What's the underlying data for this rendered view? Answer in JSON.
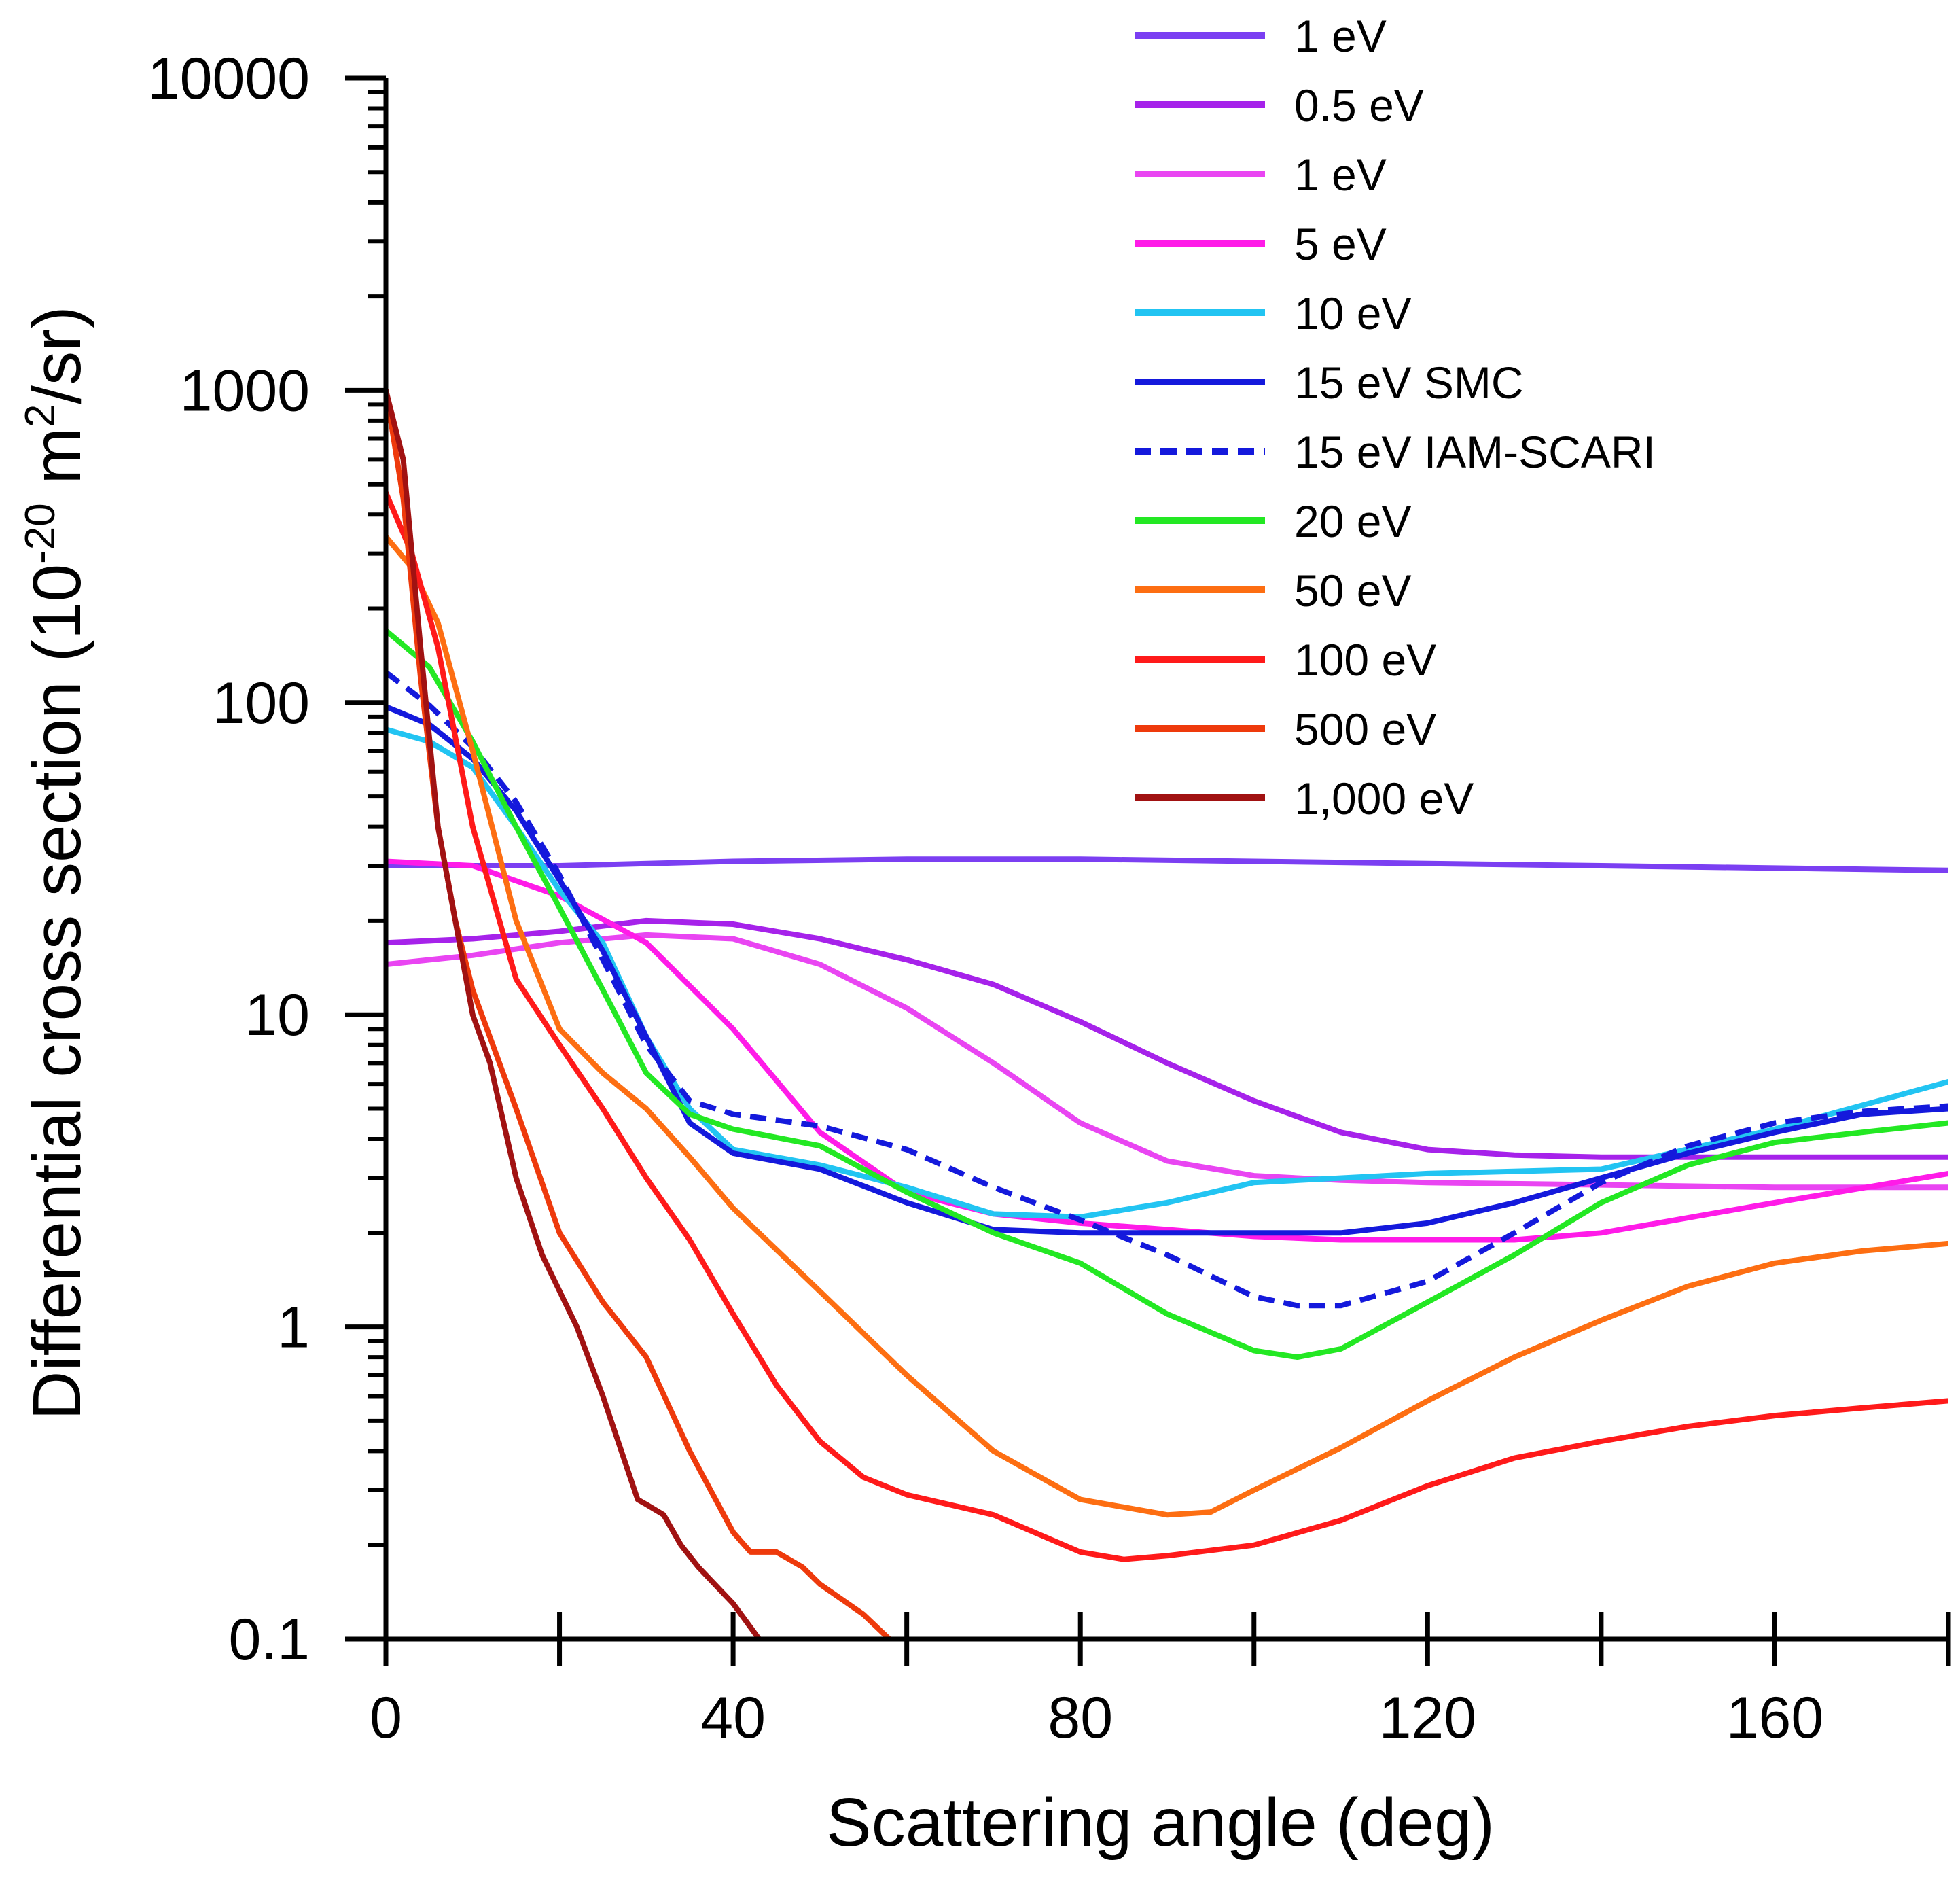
{
  "chart_data": {
    "type": "line",
    "title": "",
    "xlabel": "Scattering angle (deg)",
    "ylabel": {
      "prefix": "Differential cross section (10",
      "exp1": "-20",
      "mid": " m",
      "exp2": "2",
      "suffix": "/sr)"
    },
    "xlim": [
      0,
      180
    ],
    "ylim": [
      0.1,
      10000
    ],
    "yscale": "log",
    "x_ticks": [
      0,
      40,
      80,
      120,
      160
    ],
    "x_tick_labels": [
      "0",
      "40",
      "80",
      "120",
      "160"
    ],
    "y_ticks": [
      0.1,
      1,
      10,
      100,
      1000,
      10000
    ],
    "y_tick_labels": [
      "0.1",
      "1",
      "10",
      "100",
      "1000",
      "10000"
    ],
    "legend_position": "top-right",
    "series": [
      {
        "name": "1 eV",
        "color": "#7b3ff2",
        "dash": false,
        "x": [
          0,
          20,
          40,
          60,
          80,
          100,
          120,
          140,
          160,
          180
        ],
        "y": [
          30,
          30,
          31,
          31.5,
          31.5,
          31,
          30.5,
          30,
          29.5,
          29
        ]
      },
      {
        "name": "0.5 eV",
        "color": "#a622ea",
        "dash": false,
        "x": [
          0,
          10,
          20,
          30,
          40,
          50,
          60,
          70,
          80,
          90,
          100,
          110,
          120,
          130,
          140,
          150,
          160,
          180
        ],
        "y": [
          17,
          17.5,
          18.5,
          20,
          19.5,
          17.5,
          15,
          12.5,
          9.5,
          7,
          5.3,
          4.2,
          3.7,
          3.55,
          3.5,
          3.5,
          3.5,
          3.5
        ]
      },
      {
        "name": "1 eV",
        "color": "#e945f2",
        "dash": false,
        "x": [
          0,
          10,
          20,
          30,
          40,
          50,
          60,
          70,
          80,
          90,
          100,
          110,
          120,
          140,
          160,
          180
        ],
        "y": [
          14.5,
          15.5,
          17,
          18,
          17.5,
          14.5,
          10.5,
          7,
          4.5,
          3.4,
          3.05,
          2.95,
          2.9,
          2.85,
          2.8,
          2.8
        ]
      },
      {
        "name": "5 eV",
        "color": "#ff1be8",
        "dash": false,
        "x": [
          0,
          10,
          20,
          30,
          40,
          50,
          60,
          70,
          80,
          90,
          100,
          110,
          120,
          130,
          140,
          160,
          180
        ],
        "y": [
          31,
          30,
          24,
          17,
          9,
          4.2,
          2.7,
          2.3,
          2.15,
          2.05,
          1.95,
          1.9,
          1.9,
          1.9,
          2.0,
          2.5,
          3.1
        ]
      },
      {
        "name": "10 eV",
        "color": "#22c4f2",
        "dash": false,
        "x": [
          0,
          5,
          10,
          15,
          20,
          25,
          30,
          35,
          40,
          50,
          60,
          70,
          80,
          90,
          100,
          120,
          140,
          160,
          180
        ],
        "y": [
          82,
          75,
          62,
          40,
          25,
          17,
          8.5,
          5,
          3.7,
          3.3,
          2.8,
          2.3,
          2.25,
          2.5,
          2.9,
          3.1,
          3.2,
          4.3,
          6.1
        ]
      },
      {
        "name": "15 eV SMC",
        "color": "#1419dc",
        "dash": false,
        "x": [
          0,
          5,
          10,
          15,
          20,
          25,
          30,
          35,
          40,
          50,
          60,
          70,
          80,
          90,
          100,
          110,
          120,
          130,
          140,
          150,
          160,
          170,
          180
        ],
        "y": [
          97,
          85,
          66,
          45,
          27,
          16,
          8.5,
          4.5,
          3.6,
          3.2,
          2.5,
          2.05,
          2.0,
          2.0,
          2.0,
          2.0,
          2.15,
          2.5,
          3.0,
          3.6,
          4.2,
          4.8,
          5.0
        ]
      },
      {
        "name": "15 eV IAM-SCARI",
        "color": "#1419dc",
        "dash": true,
        "x": [
          0,
          5,
          10,
          15,
          20,
          25,
          30,
          35,
          40,
          50,
          60,
          70,
          80,
          90,
          100,
          105,
          110,
          120,
          130,
          140,
          150,
          160,
          170,
          180
        ],
        "y": [
          125,
          98,
          72,
          48,
          28,
          15,
          8,
          5.3,
          4.8,
          4.4,
          3.7,
          2.8,
          2.2,
          1.7,
          1.25,
          1.17,
          1.17,
          1.4,
          2.0,
          2.9,
          3.8,
          4.5,
          4.9,
          5.1
        ]
      },
      {
        "name": "20 eV",
        "color": "#23e823",
        "dash": false,
        "x": [
          0,
          5,
          10,
          15,
          20,
          25,
          30,
          35,
          40,
          50,
          60,
          70,
          80,
          90,
          100,
          105,
          110,
          120,
          130,
          140,
          150,
          160,
          170,
          180
        ],
        "y": [
          170,
          130,
          75,
          40,
          22,
          12,
          6.5,
          4.8,
          4.3,
          3.8,
          2.7,
          2.0,
          1.6,
          1.1,
          0.84,
          0.8,
          0.85,
          1.2,
          1.7,
          2.5,
          3.3,
          3.9,
          4.2,
          4.5
        ]
      },
      {
        "name": "50 eV",
        "color": "#fd6e12",
        "dash": false,
        "x": [
          0,
          3,
          6,
          10,
          15,
          20,
          25,
          30,
          35,
          40,
          50,
          60,
          70,
          80,
          90,
          95,
          100,
          110,
          120,
          130,
          140,
          150,
          160,
          170,
          180
        ],
        "y": [
          340,
          270,
          180,
          70,
          20,
          9,
          6.5,
          5,
          3.5,
          2.4,
          1.3,
          0.7,
          0.4,
          0.28,
          0.25,
          0.255,
          0.3,
          0.41,
          0.58,
          0.8,
          1.05,
          1.35,
          1.6,
          1.75,
          1.85
        ]
      },
      {
        "name": "100 eV",
        "color": "#ff1a1a",
        "dash": false,
        "x": [
          0,
          3,
          6,
          10,
          15,
          20,
          25,
          30,
          35,
          40,
          45,
          50,
          55,
          60,
          70,
          80,
          85,
          90,
          100,
          110,
          120,
          130,
          140,
          150,
          160,
          170,
          180
        ],
        "y": [
          470,
          300,
          150,
          40,
          13,
          8,
          5,
          3,
          1.9,
          1.1,
          0.65,
          0.43,
          0.33,
          0.29,
          0.25,
          0.19,
          0.18,
          0.185,
          0.2,
          0.24,
          0.31,
          0.38,
          0.43,
          0.48,
          0.52,
          0.55,
          0.58
        ]
      },
      {
        "name": "500 eV",
        "color": "#ee3a0c",
        "dash": false,
        "x": [
          0,
          2,
          4,
          6,
          8,
          10,
          15,
          20,
          25,
          30,
          35,
          40,
          42,
          45,
          48,
          50,
          55,
          58
        ],
        "y": [
          1000,
          450,
          120,
          40,
          20,
          12,
          5,
          2,
          1.2,
          0.8,
          0.4,
          0.22,
          0.19,
          0.19,
          0.17,
          0.15,
          0.12,
          0.1
        ]
      },
      {
        "name": "1,000 eV",
        "color": "#a11212",
        "dash": false,
        "x": [
          0,
          2,
          4,
          6,
          8,
          10,
          12,
          15,
          18,
          22,
          25,
          29,
          30,
          32,
          34,
          36,
          40,
          43
        ],
        "y": [
          1000,
          600,
          150,
          40,
          20,
          10,
          7,
          3,
          1.7,
          1.0,
          0.6,
          0.28,
          0.27,
          0.25,
          0.2,
          0.17,
          0.13,
          0.1
        ]
      }
    ]
  }
}
